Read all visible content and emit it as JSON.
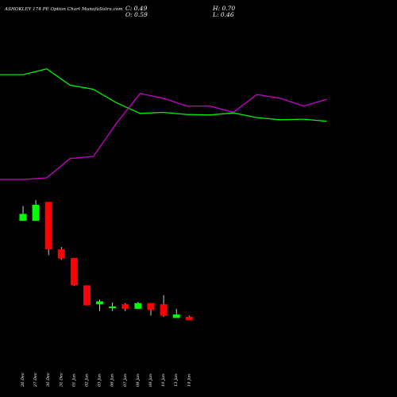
{
  "header": {
    "title": "ASHOKLEY 174  PE Option  Chart MunafaSutra.com",
    "close": "C: 0.49",
    "open": "O: 0.59",
    "high": "H: 0.70",
    "low": "L: 0.46"
  },
  "colors": {
    "background": "#000000",
    "up": "#00ff00",
    "down": "#ff0000",
    "line_green": "#00ee00",
    "line_magenta": "#cc00cc",
    "text": "#ffffff"
  },
  "chart_data": [
    {
      "type": "line",
      "series": [
        {
          "color": "#00ee00",
          "values": [
            1.0,
            1.0,
            1.11,
            0.8,
            0.72,
            0.46,
            0.26,
            0.28,
            0.24,
            0.23,
            0.27,
            0.18,
            0.14,
            0.15,
            0.11
          ]
        },
        {
          "color": "#cc00cc",
          "values": [
            -1.0,
            -1.0,
            -0.97,
            -0.6,
            -0.56,
            0.08,
            0.64,
            0.55,
            0.4,
            0.4,
            0.28,
            0.62,
            0.55,
            0.4,
            0.53
          ]
        }
      ]
    },
    {
      "type": "candlestick",
      "categories": [
        "26 Dec",
        "27 Dec",
        "30 Dec",
        "31 Dec",
        "01 Jan",
        "02 Jan",
        "03 Jan",
        "06 Jan",
        "07 Jan",
        "08 Jan",
        "09 Jan",
        "10 Jan",
        "13 Jan",
        "14 Jan"
      ],
      "candles": [
        {
          "open": 5.9,
          "high": 7.2,
          "low": 5.9,
          "close": 6.5
        },
        {
          "open": 5.9,
          "high": 7.7,
          "low": 5.9,
          "close": 7.3
        },
        {
          "open": 7.55,
          "high": 7.55,
          "low": 2.9,
          "close": 3.4
        },
        {
          "open": 3.4,
          "high": 3.6,
          "low": 2.5,
          "close": 2.6
        },
        {
          "open": 2.65,
          "high": 2.65,
          "low": 0.2,
          "close": 0.25
        },
        {
          "open": 0.25,
          "high": 0.25,
          "low": -1.5,
          "close": -1.5
        },
        {
          "open": -1.4,
          "high": -1.0,
          "low": -2.0,
          "close": -1.15
        },
        {
          "open": -1.75,
          "high": -1.25,
          "low": -2.0,
          "close": -1.6
        },
        {
          "open": -1.4,
          "high": -1.3,
          "low": -2.0,
          "close": -1.8
        },
        {
          "open": -1.8,
          "high": -1.2,
          "low": -1.8,
          "close": -1.3
        },
        {
          "open": -1.3,
          "high": -1.3,
          "low": -2.4,
          "close": -1.9
        },
        {
          "open": -1.4,
          "high": -0.6,
          "low": -2.5,
          "close": -2.4
        },
        {
          "open": -2.6,
          "high": -1.8,
          "low": -2.6,
          "close": -2.3
        },
        {
          "open": -2.5,
          "high": -2.4,
          "low": -2.8,
          "close": -2.8
        }
      ]
    }
  ]
}
